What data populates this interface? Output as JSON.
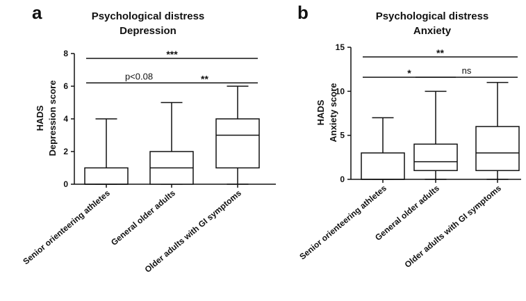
{
  "chart_data": [
    {
      "type": "box",
      "panel_label": "a",
      "title": [
        "Psychological distress",
        "Depression"
      ],
      "ylabel": [
        "HADS",
        "Depression score"
      ],
      "ylim": [
        0,
        8
      ],
      "yticks": [
        0,
        2,
        4,
        6,
        8
      ],
      "categories": [
        "Senior orienteering athletes",
        "General older adults",
        "Older adults with GI symptoms"
      ],
      "boxes": [
        {
          "min": 0,
          "q1": 0,
          "median": 0,
          "q3": 1,
          "max": 4
        },
        {
          "min": 0,
          "q1": 0,
          "median": 1,
          "q3": 2,
          "max": 5
        },
        {
          "min": 0,
          "q1": 1,
          "median": 3,
          "q3": 4,
          "max": 6
        }
      ],
      "significance": [
        {
          "from": 0,
          "to": 1,
          "label": "p<0.08",
          "y": 6.2
        },
        {
          "from": 1,
          "to": 2,
          "label": "**",
          "y": 6.2
        },
        {
          "from": 0,
          "to": 2,
          "label": "***",
          "y": 7.7
        }
      ]
    },
    {
      "type": "box",
      "panel_label": "b",
      "title": [
        "Psychological distress",
        "Anxiety"
      ],
      "ylabel": [
        "HADS",
        "Anxiety score"
      ],
      "ylim": [
        0,
        15
      ],
      "yticks": [
        0,
        5,
        10,
        15
      ],
      "categories": [
        "Senior orienteering athletes",
        "General older adults",
        "Older adults with GI symptoms"
      ],
      "boxes": [
        {
          "min": 0,
          "q1": 0,
          "median": 0,
          "q3": 3,
          "max": 7
        },
        {
          "min": 0,
          "q1": 1,
          "median": 2,
          "q3": 4,
          "max": 10
        },
        {
          "min": 0,
          "q1": 1,
          "median": 3,
          "q3": 6,
          "max": 11
        }
      ],
      "significance": [
        {
          "from": 0,
          "to": 1,
          "label": "*",
          "y": 11.6
        },
        {
          "from": 1,
          "to": 2,
          "label": "ns",
          "y": 11.6
        },
        {
          "from": 0,
          "to": 2,
          "label": "**",
          "y": 13.9
        }
      ]
    }
  ]
}
